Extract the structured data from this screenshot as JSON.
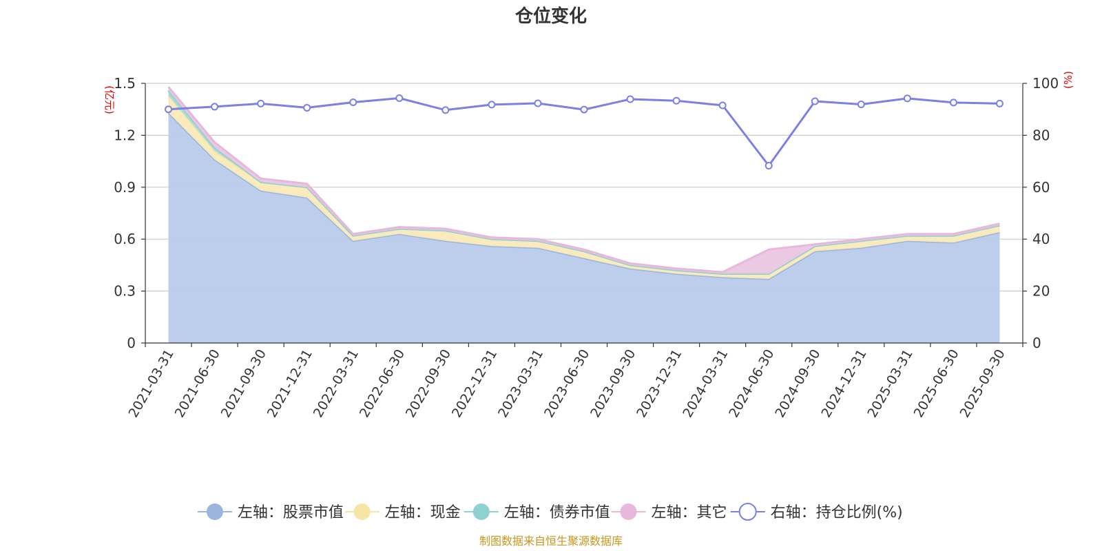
{
  "chart_data": {
    "type": "area",
    "title": "仓位变化",
    "left_unit": "(亿元)",
    "right_unit": "(%)",
    "categories": [
      "2021-03-31",
      "2021-06-30",
      "2021-09-30",
      "2021-12-31",
      "2022-03-31",
      "2022-06-30",
      "2022-09-30",
      "2022-12-31",
      "2023-03-31",
      "2023-06-30",
      "2023-09-30",
      "2023-12-31",
      "2024-03-31",
      "2024-06-30",
      "2024-09-30",
      "2024-12-31",
      "2025-03-31",
      "2025-06-30",
      "2025-09-30"
    ],
    "left_axis": {
      "min": 0,
      "max": 1.5,
      "ticks": [
        0,
        0.3,
        0.6,
        0.9,
        1.2,
        1.5
      ],
      "tick_labels": [
        "0",
        "0.3",
        "0.6",
        "0.9",
        "1.2",
        "1.5"
      ]
    },
    "right_axis": {
      "min": 0,
      "max": 100,
      "ticks": [
        0,
        20,
        40,
        60,
        80,
        100
      ],
      "tick_labels": [
        "0",
        "20",
        "40",
        "60",
        "80",
        "100"
      ]
    },
    "stacked_series": [
      {
        "name": "左轴：股票市值",
        "color": "#9bb5de",
        "fill": "#b8cbea",
        "values": [
          1.33,
          1.06,
          0.88,
          0.84,
          0.59,
          0.63,
          0.59,
          0.56,
          0.55,
          0.49,
          0.43,
          0.4,
          0.38,
          0.37,
          0.53,
          0.55,
          0.59,
          0.58,
          0.64
        ]
      },
      {
        "name": "左轴：现金",
        "color": "#f6e6a6",
        "fill": "#faeab8",
        "values": [
          0.1,
          0.05,
          0.05,
          0.06,
          0.03,
          0.03,
          0.06,
          0.04,
          0.04,
          0.04,
          0.02,
          0.02,
          0.02,
          0.03,
          0.03,
          0.04,
          0.03,
          0.04,
          0.04
        ]
      },
      {
        "name": "左轴：债券市值",
        "color": "#8fd0d2",
        "fill": "#a5dad9",
        "values": [
          0.03,
          0.02,
          0,
          0,
          0,
          0,
          0,
          0,
          0,
          0,
          0,
          0,
          0,
          0,
          0,
          0,
          0,
          0,
          0
        ]
      },
      {
        "name": "左轴：其它",
        "color": "#e6b8da",
        "fill": "#ebc6e1",
        "values": [
          0.02,
          0.03,
          0.02,
          0.02,
          0.01,
          0.01,
          0.01,
          0.01,
          0.01,
          0.01,
          0.01,
          0.01,
          0.01,
          0.14,
          0.01,
          0.01,
          0.01,
          0.01,
          0.01
        ]
      }
    ],
    "line_series": {
      "name": "右轴：持仓比例(%)",
      "color": "#7b7fe8",
      "values": [
        90.0,
        91.0,
        92.2,
        90.6,
        92.7,
        94.3,
        89.7,
        91.8,
        92.3,
        89.9,
        93.9,
        93.3,
        91.5,
        68.3,
        93.1,
        91.9,
        94.2,
        92.6,
        92.2
      ]
    },
    "grid": true,
    "legend_position": "bottom"
  },
  "footer": {
    "source": "制图数据来自恒生聚源数据库"
  },
  "colors": {
    "axis_unit": "#e00000",
    "grid": "#cccccc",
    "footer": "#c8961e",
    "title": "#333333"
  }
}
